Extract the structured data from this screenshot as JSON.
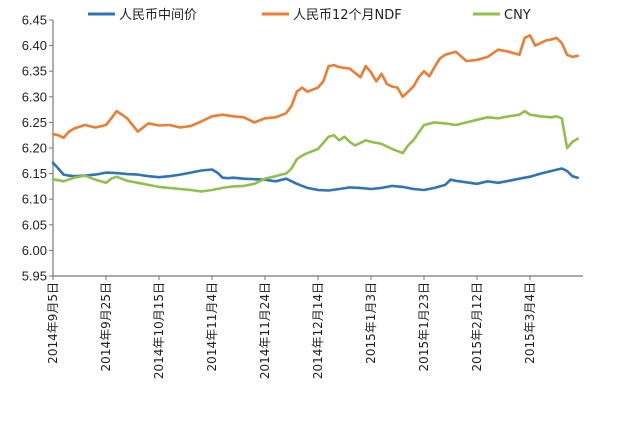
{
  "chart_data": {
    "type": "line",
    "title": "",
    "xlabel": "",
    "ylabel": "",
    "ylim": [
      5.95,
      6.45
    ],
    "yticks": [
      "5.95",
      "6.00",
      "6.05",
      "6.10",
      "6.15",
      "6.20",
      "6.25",
      "6.30",
      "6.35",
      "6.40",
      "6.45"
    ],
    "grid": false,
    "legend": [
      "人民币中间价",
      "人民币12个月NDF",
      "CNY"
    ],
    "legend_position": "top",
    "x_tick_labels": [
      "2014年9月5日",
      "2014年9月25日",
      "2014年10月15日",
      "2014年11月4日",
      "2014年11月24日",
      "2014年12月14日",
      "2015年1月3日",
      "2015年1月23日",
      "2015年2月12日",
      "2015年3月4日"
    ],
    "x_tick_days": [
      0,
      20,
      40,
      60,
      80,
      100,
      120,
      140,
      160,
      180
    ],
    "x_range_days": [
      0,
      200
    ],
    "series": [
      {
        "name": "人民币中间价",
        "color": "#2e75b6",
        "x": [
          0,
          2,
          4,
          6,
          8,
          12,
          16,
          20,
          24,
          28,
          32,
          36,
          40,
          44,
          48,
          52,
          56,
          60,
          62,
          64,
          66,
          68,
          72,
          76,
          80,
          84,
          88,
          92,
          96,
          100,
          104,
          108,
          112,
          116,
          120,
          124,
          128,
          132,
          136,
          140,
          144,
          148,
          150,
          152,
          156,
          160,
          164,
          168,
          172,
          176,
          180,
          184,
          188,
          192,
          194,
          196,
          198
        ],
        "values": [
          6.171,
          6.16,
          6.148,
          6.146,
          6.145,
          6.146,
          6.148,
          6.152,
          6.151,
          6.149,
          6.148,
          6.145,
          6.143,
          6.145,
          6.148,
          6.152,
          6.156,
          6.158,
          6.152,
          6.142,
          6.141,
          6.142,
          6.14,
          6.139,
          6.138,
          6.135,
          6.14,
          6.13,
          6.122,
          6.118,
          6.117,
          6.12,
          6.123,
          6.122,
          6.12,
          6.122,
          6.126,
          6.124,
          6.12,
          6.118,
          6.122,
          6.128,
          6.138,
          6.136,
          6.133,
          6.13,
          6.135,
          6.132,
          6.136,
          6.14,
          6.144,
          6.15,
          6.155,
          6.16,
          6.155,
          6.145,
          6.142
        ]
      },
      {
        "name": "人民币12个月NDF",
        "color": "#ed7d31",
        "x": [
          0,
          2,
          4,
          6,
          8,
          12,
          16,
          20,
          22,
          24,
          26,
          28,
          32,
          36,
          40,
          44,
          48,
          52,
          56,
          60,
          64,
          68,
          72,
          76,
          80,
          84,
          88,
          90,
          92,
          94,
          96,
          100,
          102,
          104,
          106,
          108,
          112,
          116,
          118,
          120,
          122,
          124,
          126,
          128,
          130,
          132,
          134,
          136,
          138,
          140,
          142,
          144,
          146,
          148,
          152,
          156,
          160,
          164,
          168,
          172,
          176,
          178,
          180,
          182,
          184,
          186,
          188,
          190,
          192,
          194,
          196,
          198
        ],
        "values": [
          6.227,
          6.225,
          6.22,
          6.232,
          6.238,
          6.245,
          6.24,
          6.245,
          6.258,
          6.272,
          6.265,
          6.258,
          6.232,
          6.248,
          6.244,
          6.245,
          6.24,
          6.243,
          6.252,
          6.262,
          6.265,
          6.262,
          6.26,
          6.25,
          6.258,
          6.26,
          6.268,
          6.282,
          6.31,
          6.318,
          6.31,
          6.318,
          6.33,
          6.36,
          6.362,
          6.358,
          6.355,
          6.338,
          6.36,
          6.348,
          6.33,
          6.345,
          6.325,
          6.32,
          6.318,
          6.3,
          6.31,
          6.32,
          6.338,
          6.35,
          6.34,
          6.358,
          6.375,
          6.382,
          6.388,
          6.37,
          6.372,
          6.378,
          6.392,
          6.388,
          6.382,
          6.415,
          6.42,
          6.4,
          6.405,
          6.41,
          6.412,
          6.415,
          6.405,
          6.382,
          6.378,
          6.38
        ]
      },
      {
        "name": "CNY",
        "color": "#8fc14a",
        "x": [
          0,
          4,
          8,
          12,
          16,
          20,
          22,
          24,
          28,
          32,
          36,
          40,
          44,
          48,
          52,
          56,
          60,
          64,
          68,
          72,
          76,
          80,
          84,
          86,
          88,
          90,
          92,
          94,
          96,
          100,
          102,
          104,
          106,
          108,
          110,
          112,
          114,
          116,
          118,
          120,
          124,
          128,
          132,
          134,
          136,
          138,
          140,
          144,
          148,
          152,
          156,
          160,
          164,
          168,
          172,
          176,
          178,
          180,
          184,
          188,
          190,
          192,
          194,
          196,
          198
        ],
        "values": [
          6.139,
          6.135,
          6.142,
          6.146,
          6.138,
          6.132,
          6.14,
          6.144,
          6.136,
          6.132,
          6.128,
          6.124,
          6.122,
          6.12,
          6.118,
          6.115,
          6.118,
          6.122,
          6.125,
          6.126,
          6.13,
          6.14,
          6.145,
          6.148,
          6.15,
          6.16,
          6.178,
          6.185,
          6.19,
          6.198,
          6.21,
          6.222,
          6.225,
          6.215,
          6.222,
          6.212,
          6.205,
          6.21,
          6.215,
          6.212,
          6.208,
          6.198,
          6.19,
          6.205,
          6.215,
          6.23,
          6.245,
          6.25,
          6.248,
          6.245,
          6.25,
          6.255,
          6.26,
          6.258,
          6.262,
          6.265,
          6.272,
          6.265,
          6.262,
          6.26,
          6.262,
          6.258,
          6.2,
          6.212,
          6.218
        ]
      }
    ]
  }
}
